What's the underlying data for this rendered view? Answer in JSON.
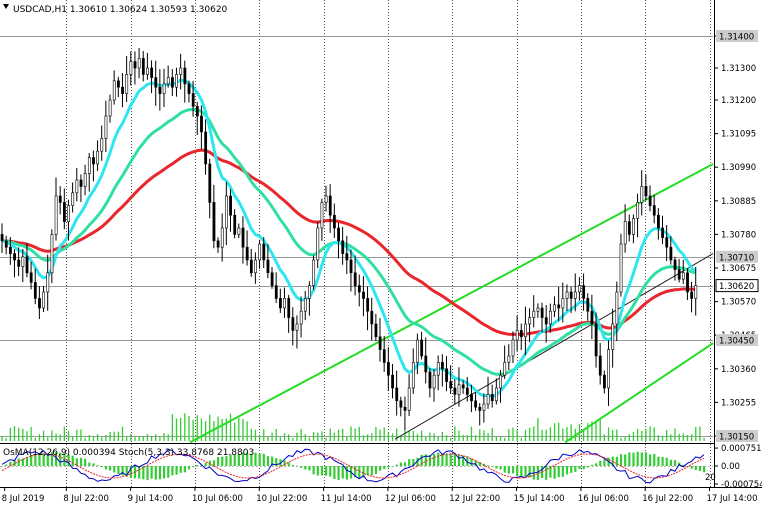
{
  "header": {
    "symbol_line": "USDCAD,H1  1.30610 1.30624 1.30593 1.30620",
    "indicator_line": "OsMA(12,26,9) 0.000394 Stoch(5,3,3) 33.8768 21.8803"
  },
  "colors": {
    "background": "#ffffff",
    "candle": "#000000",
    "ema_red": "#e8262c",
    "ema_green": "#2fe0a0",
    "ema_cyan": "#2ee6f0",
    "channel": "#22dd22",
    "trendline": "#222222",
    "volume": "#33cc33",
    "osma": "#33cc33",
    "stoch_main": "#0000cc",
    "stoch_signal": "#e8262c",
    "grid": "#555555",
    "tag_bg": "#cccccc"
  },
  "chart_data": {
    "type": "candlestick",
    "symbol": "USDCAD",
    "timeframe": "H1",
    "price_axis": {
      "ylim": [
        1.3013,
        1.315
      ],
      "tick_labels": [
        "1.31400",
        "1.31300",
        "1.31200",
        "1.31095",
        "1.30990",
        "1.30885",
        "1.30780",
        "1.30675",
        "1.30570",
        "1.30465",
        "1.30360",
        "1.30255",
        "1.30150"
      ],
      "tick_values": [
        1.314,
        1.313,
        1.312,
        1.31095,
        1.3099,
        1.30885,
        1.3078,
        1.30675,
        1.3057,
        1.30465,
        1.3036,
        1.30255,
        1.3015
      ]
    },
    "highlighted_levels": [
      {
        "label": "1.31400",
        "value": 1.314
      },
      {
        "label": "1.30710",
        "value": 1.3071
      },
      {
        "label": "1.30620",
        "value": 1.3062
      },
      {
        "label": "1.30450",
        "value": 1.3045
      },
      {
        "label": "1.30150",
        "value": 1.3015
      }
    ],
    "time_axis": {
      "labels": [
        "8 Jul 2019",
        "8 Jul 22:00",
        "9 Jul 14:00",
        "10 Jul 06:00",
        "10 Jul 22:00",
        "11 Jul 14:00",
        "12 Jul 06:00",
        "12 Jul 22:00",
        "15 Jul 14:00",
        "16 Jul 06:00",
        "16 Jul 22:00",
        "17 Jul 14:00"
      ],
      "bar_index": [
        1,
        24,
        48,
        72,
        96,
        120,
        144,
        168,
        192,
        216,
        240,
        264
      ]
    },
    "last_price": 1.3062,
    "closes": [
      1.3076,
      1.3074,
      1.3072,
      1.307,
      1.3068,
      1.3071,
      1.3066,
      1.3063,
      1.3058,
      1.3055,
      1.306,
      1.3066,
      1.3078,
      1.309,
      1.3088,
      1.3082,
      1.3087,
      1.3091,
      1.3095,
      1.3093,
      1.3097,
      1.3102,
      1.31,
      1.3104,
      1.3108,
      1.3115,
      1.312,
      1.3126,
      1.3124,
      1.3122,
      1.3128,
      1.3132,
      1.313,
      1.3133,
      1.3128,
      1.313,
      1.3127,
      1.3124,
      1.3122,
      1.3125,
      1.3127,
      1.3124,
      1.3128,
      1.313,
      1.3125,
      1.3122,
      1.3118,
      1.3115,
      1.311,
      1.31,
      1.3088,
      1.3076,
      1.3074,
      1.308,
      1.309,
      1.3084,
      1.3078,
      1.308,
      1.3074,
      1.307,
      1.3066,
      1.307,
      1.3075,
      1.307,
      1.3066,
      1.3062,
      1.3058,
      1.3055,
      1.3058,
      1.3052,
      1.3048,
      1.305,
      1.3054,
      1.3058,
      1.3062,
      1.307,
      1.308,
      1.3088,
      1.309,
      1.3084,
      1.308,
      1.3076,
      1.3072,
      1.307,
      1.3066,
      1.3062,
      1.306,
      1.3058,
      1.3054,
      1.305,
      1.3046,
      1.3042,
      1.3038,
      1.3034,
      1.303,
      1.3026,
      1.3024,
      1.3023,
      1.303,
      1.3038,
      1.3045,
      1.304,
      1.3035,
      1.303,
      1.3034,
      1.3038,
      1.3036,
      1.3032,
      1.303,
      1.3028,
      1.3031,
      1.303,
      1.3028,
      1.3026,
      1.3024,
      1.3023,
      1.3025,
      1.3028,
      1.3026,
      1.303,
      1.3034,
      1.3038,
      1.304,
      1.3045,
      1.3048,
      1.3046,
      1.305,
      1.3052,
      1.3054,
      1.3055,
      1.3052,
      1.305,
      1.3054,
      1.3056,
      1.3055,
      1.3058,
      1.306,
      1.3058,
      1.306,
      1.3062,
      1.3058,
      1.3054,
      1.305,
      1.304,
      1.3034,
      1.303,
      1.3042,
      1.305,
      1.306,
      1.3075,
      1.3082,
      1.3078,
      1.3083,
      1.3088,
      1.3093,
      1.309,
      1.3087,
      1.3084,
      1.308,
      1.3077,
      1.3074,
      1.307,
      1.3067,
      1.3064,
      1.3066,
      1.306,
      1.3058,
      1.3062
    ]
  },
  "osma_stoch": {
    "levels": [
      "0.000751",
      "0.00",
      "-0.000754"
    ],
    "level_values": [
      0.000751,
      0.0,
      -0.000754
    ],
    "stoch_levels": [
      20,
      80
    ],
    "stoch_level_labels": [
      "20"
    ]
  }
}
